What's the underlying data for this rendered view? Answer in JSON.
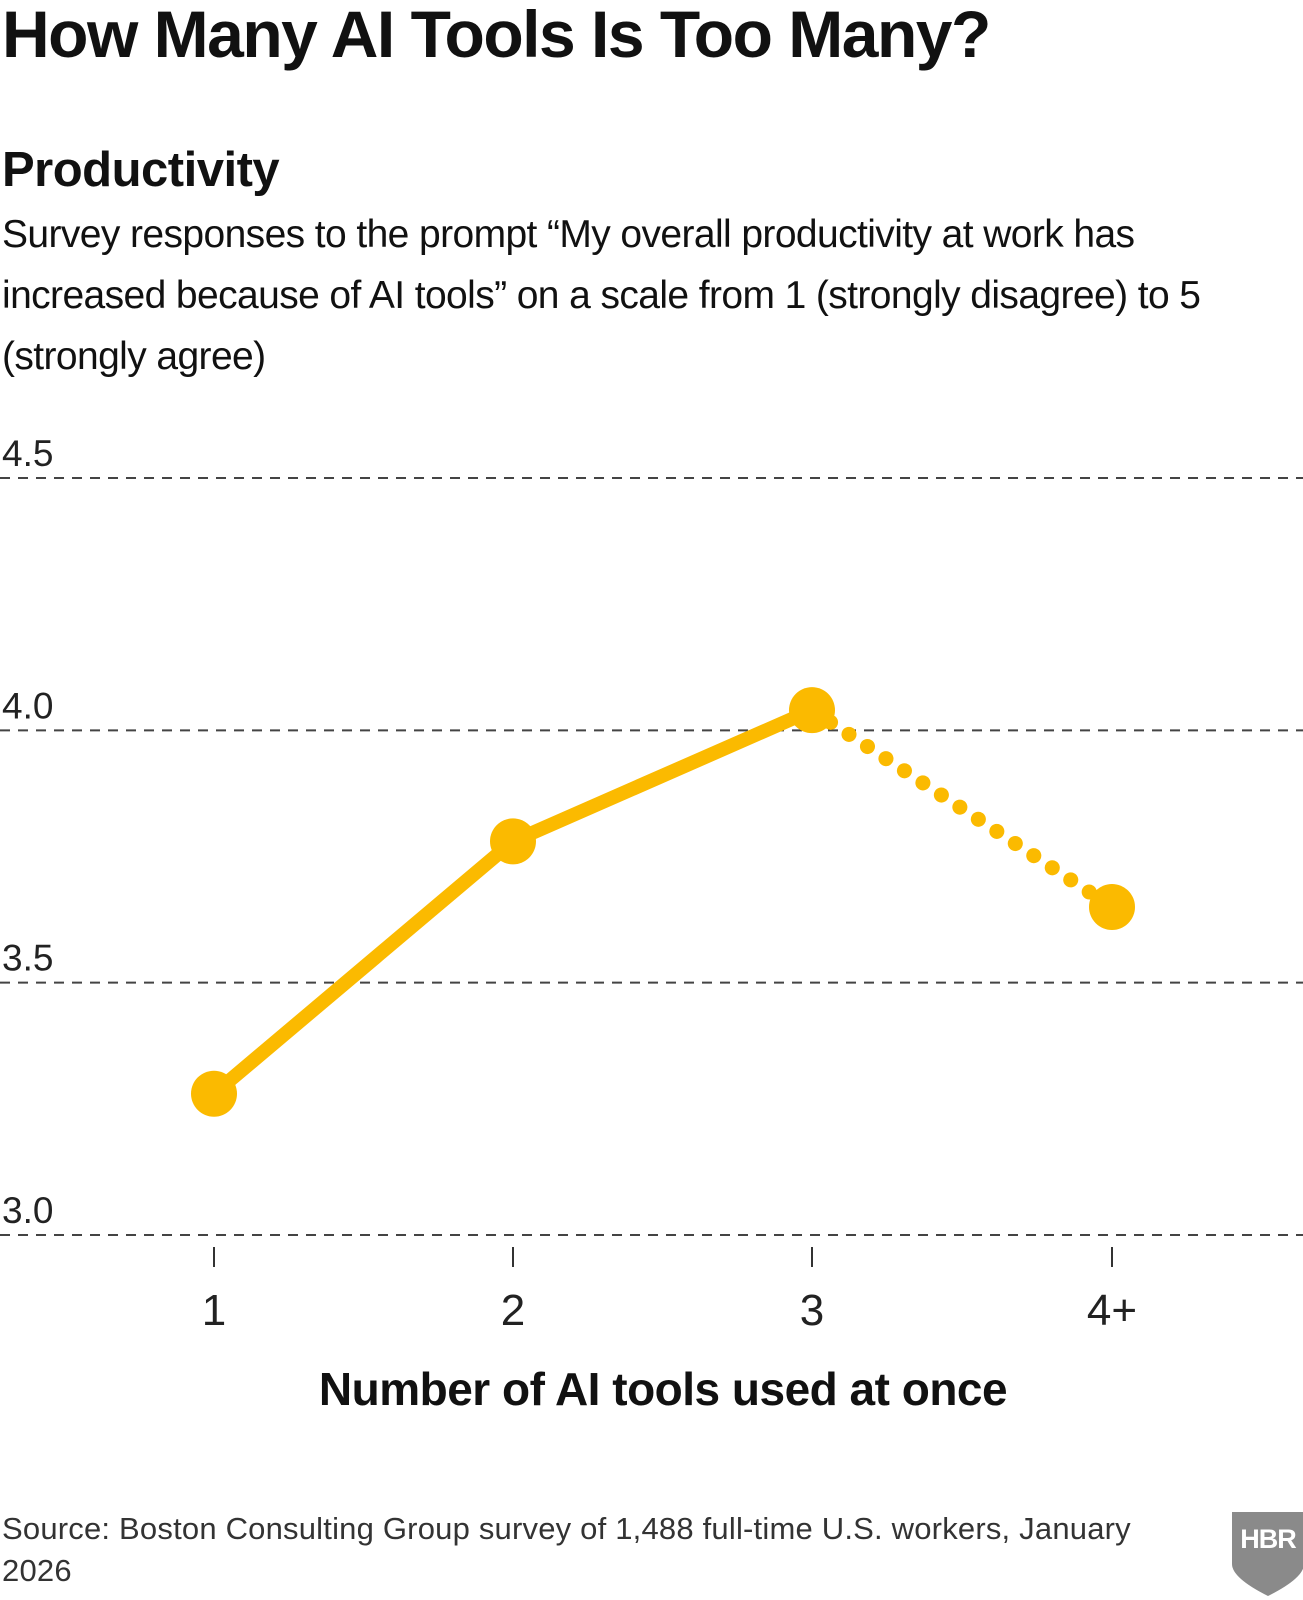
{
  "header": {
    "title": "How Many AI Tools Is Too Many?",
    "subtitle": "Productivity",
    "description": "Survey responses to the prompt “My overall productivity at work has increased because of AI tools” on a scale from 1 (strongly disagree) to 5 (strongly agree)"
  },
  "chart_data": {
    "type": "line",
    "title": "Productivity",
    "xlabel": "Number of AI tools used at once",
    "ylabel": "",
    "categories": [
      "1",
      "2",
      "3",
      "4+"
    ],
    "series": [
      {
        "values": [
          3.28,
          3.78,
          4.04,
          3.65
        ],
        "solid_through_index": 2,
        "dotted_last_segment": true
      }
    ],
    "ylim": [
      3.0,
      4.5
    ],
    "yticks": [
      "3.0",
      "3.5",
      "4.0",
      "4.5"
    ],
    "ytick_values": [
      3.0,
      3.5,
      4.0,
      4.5
    ],
    "grid": true,
    "line_color": "#FBBA00",
    "grid_color": "#444444"
  },
  "footer": {
    "source": "Source: Boston Consulting Group survey of 1,488 full-time U.S. workers, January 2026",
    "logo_text": "HBR",
    "logo_color": "#8a8a8a"
  }
}
